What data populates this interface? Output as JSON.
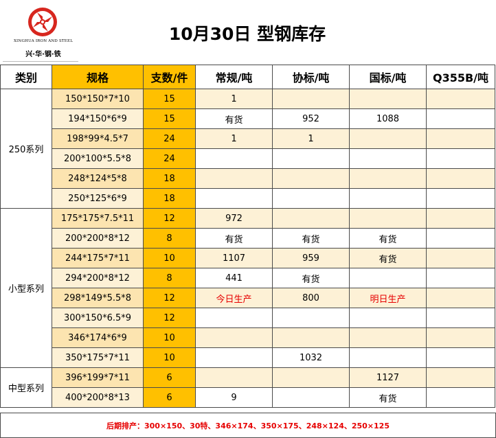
{
  "logo": {
    "name_en": "XINGHUA IRON AND STEEL",
    "name_cn": "兴·华·钢·铁"
  },
  "title": "10月30日 型钢库存",
  "columns": [
    "类别",
    "规格",
    "支数/件",
    "常规/吨",
    "协标/吨",
    "国标/吨",
    "Q355B/吨"
  ],
  "groups": [
    {
      "category": "250系列",
      "rows": [
        {
          "spec": "150*150*7*10",
          "qty": "15",
          "regular": "1",
          "assoc": "",
          "national": "",
          "q355b": ""
        },
        {
          "spec": "194*150*6*9",
          "qty": "15",
          "regular": "有货",
          "assoc": "952",
          "national": "1088",
          "q355b": ""
        },
        {
          "spec": "198*99*4.5*7",
          "qty": "24",
          "regular": "1",
          "assoc": "1",
          "national": "",
          "q355b": ""
        },
        {
          "spec": "200*100*5.5*8",
          "qty": "24",
          "regular": "",
          "assoc": "",
          "national": "",
          "q355b": ""
        },
        {
          "spec": "248*124*5*8",
          "qty": "18",
          "regular": "",
          "assoc": "",
          "national": "",
          "q355b": ""
        },
        {
          "spec": "250*125*6*9",
          "qty": "18",
          "regular": "",
          "assoc": "",
          "national": "",
          "q355b": ""
        }
      ]
    },
    {
      "category": "小型系列",
      "rows": [
        {
          "spec": "175*175*7.5*11",
          "qty": "12",
          "regular": "972",
          "assoc": "",
          "national": "",
          "q355b": ""
        },
        {
          "spec": "200*200*8*12",
          "qty": "8",
          "regular": "有货",
          "assoc": "有货",
          "national": "有货",
          "q355b": ""
        },
        {
          "spec": "244*175*7*11",
          "qty": "10",
          "regular": "1107",
          "assoc": "959",
          "national": "有货",
          "q355b": ""
        },
        {
          "spec": "294*200*8*12",
          "qty": "8",
          "regular": "441",
          "assoc": "有货",
          "national": "",
          "q355b": ""
        },
        {
          "spec": "298*149*5.5*8",
          "qty": "12",
          "regular": "今日生产",
          "assoc": "800",
          "national": "明日生产",
          "q355b": ""
        },
        {
          "spec": "300*150*6.5*9",
          "qty": "12",
          "regular": "",
          "assoc": "",
          "national": "",
          "q355b": ""
        },
        {
          "spec": "346*174*6*9",
          "qty": "10",
          "regular": "",
          "assoc": "",
          "national": "",
          "q355b": ""
        },
        {
          "spec": "350*175*7*11",
          "qty": "10",
          "regular": "",
          "assoc": "1032",
          "national": "",
          "q355b": ""
        }
      ]
    },
    {
      "category": "中型系列",
      "rows": [
        {
          "spec": "396*199*7*11",
          "qty": "6",
          "regular": "",
          "assoc": "",
          "national": "1127",
          "q355b": ""
        },
        {
          "spec": "400*200*8*13",
          "qty": "6",
          "regular": "9",
          "assoc": "",
          "national": "有货",
          "q355b": ""
        }
      ]
    }
  ],
  "red_values": [
    "今日生产",
    "明日生产"
  ],
  "footer": "后期排产：300×150、30特、346×174、350×175、248×124、250×125",
  "colors": {
    "accent_gold": "#ffc000",
    "row_tint": "#fdf1d6",
    "alert_red": "#e60000",
    "logo_red": "#d7261e"
  }
}
